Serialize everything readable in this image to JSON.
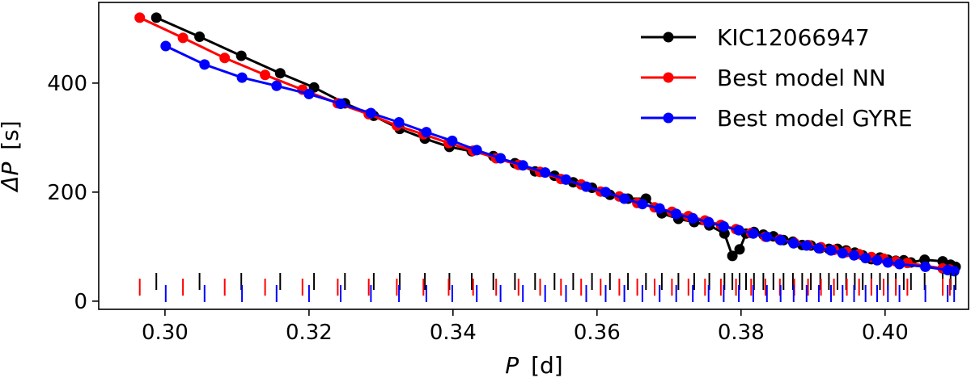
{
  "chart_data": {
    "type": "line",
    "xlabel_symbol": "P",
    "xlabel_unit": "[d]",
    "ylabel_symbol": "ΔP",
    "ylabel_unit": "[s]",
    "xlim": [
      0.2908,
      0.4116
    ],
    "ylim": [
      -15,
      548
    ],
    "xticks": [
      0.3,
      0.32,
      0.34,
      0.36,
      0.38,
      0.4
    ],
    "xtick_labels": [
      "0.30",
      "0.32",
      "0.34",
      "0.36",
      "0.38",
      "0.40"
    ],
    "yticks": [
      0,
      200,
      400
    ],
    "ytick_labels": [
      "0",
      "200",
      "400"
    ],
    "legend_position": "top-right",
    "series": [
      {
        "name": "KIC12066947",
        "color": "#000000",
        "x": [
          0.2988,
          0.3048,
          0.3106,
          0.316,
          0.3207,
          0.325,
          0.329,
          0.3326,
          0.3361,
          0.3395,
          0.3426,
          0.3456,
          0.3486,
          0.3514,
          0.3541,
          0.3567,
          0.3593,
          0.3618,
          0.3643,
          0.3668,
          0.369,
          0.3713,
          0.3735,
          0.3756,
          0.3777,
          0.3788,
          0.3798,
          0.3807,
          0.3818,
          0.3831,
          0.3845,
          0.3859,
          0.3872,
          0.3885,
          0.3897,
          0.391,
          0.3922,
          0.3934,
          0.3946,
          0.3958,
          0.3969,
          0.3981,
          0.3993,
          0.4004,
          0.4015,
          0.4026,
          0.4036,
          0.4055,
          0.408,
          0.4091,
          0.4098
        ],
        "y": [
          520,
          485,
          450,
          418,
          392,
          363,
          340,
          316,
          298,
          283,
          275,
          266,
          253,
          238,
          230,
          218,
          208,
          195,
          188,
          188,
          161,
          151,
          145,
          139,
          124,
          83,
          95,
          124,
          127,
          122,
          119,
          112,
          109,
          103,
          102,
          97,
          96,
          96,
          93,
          89,
          84,
          77,
          80,
          76,
          74,
          75,
          71,
          76,
          73,
          67,
          63
        ],
        "rug": [
          0.2988,
          0.3048,
          0.3106,
          0.316,
          0.3207,
          0.325,
          0.329,
          0.3326,
          0.3361,
          0.3395,
          0.3426,
          0.3456,
          0.3486,
          0.3514,
          0.3541,
          0.3567,
          0.3593,
          0.3618,
          0.3643,
          0.3668,
          0.369,
          0.3713,
          0.3735,
          0.3756,
          0.3777,
          0.3788,
          0.3798,
          0.3807,
          0.3818,
          0.3831,
          0.3845,
          0.3859,
          0.3872,
          0.3885,
          0.3897,
          0.391,
          0.3922,
          0.3934,
          0.3946,
          0.3958,
          0.3969,
          0.3981,
          0.3993,
          0.4004,
          0.4015,
          0.4026,
          0.4036,
          0.4055,
          0.408,
          0.4091,
          0.4098
        ]
      },
      {
        "name": "Best model NN",
        "color": "#ff0000",
        "x": [
          0.2965,
          0.3025,
          0.3083,
          0.3139,
          0.3191,
          0.324,
          0.3283,
          0.3322,
          0.3359,
          0.3394,
          0.3428,
          0.346,
          0.3491,
          0.3521,
          0.355,
          0.3578,
          0.3605,
          0.3631,
          0.3656,
          0.368,
          0.3704,
          0.3727,
          0.375,
          0.3772,
          0.3793,
          0.3814,
          0.3834,
          0.3854,
          0.3874,
          0.3893,
          0.3911,
          0.3929,
          0.3947,
          0.3964,
          0.3981,
          0.3998,
          0.4015,
          0.4031,
          0.408,
          0.409
        ],
        "y": [
          520,
          483,
          446,
          415,
          388,
          363,
          343,
          322,
          306,
          290,
          276,
          262,
          250,
          237,
          224,
          214,
          201,
          192,
          180,
          172,
          164,
          156,
          148,
          140,
          132,
          125,
          118,
          113,
          107,
          103,
          99,
          94,
          90,
          86,
          81,
          78,
          73,
          70,
          60,
          58
        ],
        "rug": [
          0.2965,
          0.3025,
          0.3083,
          0.3139,
          0.3191,
          0.324,
          0.3283,
          0.3322,
          0.3359,
          0.3394,
          0.3428,
          0.346,
          0.3491,
          0.3521,
          0.355,
          0.3578,
          0.3605,
          0.3631,
          0.3656,
          0.368,
          0.3704,
          0.3727,
          0.375,
          0.3772,
          0.3793,
          0.3814,
          0.3834,
          0.3854,
          0.3874,
          0.3893,
          0.3911,
          0.3929,
          0.3947,
          0.3964,
          0.3981,
          0.3998,
          0.4015,
          0.4031,
          0.408,
          0.409
        ]
      },
      {
        "name": "Best model GYRE",
        "color": "#0000ff",
        "x": [
          0.3001,
          0.3055,
          0.3107,
          0.3155,
          0.32,
          0.3244,
          0.3286,
          0.3325,
          0.3363,
          0.3399,
          0.3433,
          0.3466,
          0.3497,
          0.3528,
          0.3557,
          0.3585,
          0.3612,
          0.3638,
          0.3663,
          0.3687,
          0.371,
          0.3733,
          0.3755,
          0.3776,
          0.3797,
          0.3817,
          0.3836,
          0.3855,
          0.3873,
          0.3891,
          0.3908,
          0.3925,
          0.3941,
          0.3957,
          0.3973,
          0.3989,
          0.4004,
          0.402,
          0.4056,
          0.4087,
          0.4096
        ],
        "y": [
          468,
          434,
          410,
          395,
          380,
          362,
          345,
          328,
          310,
          294,
          277,
          262,
          249,
          236,
          223,
          210,
          200,
          188,
          178,
          170,
          160,
          152,
          145,
          137,
          130,
          124,
          118,
          112,
          106,
          102,
          97,
          93,
          88,
          84,
          79,
          75,
          71,
          68,
          63,
          57,
          55
        ],
        "rug": [
          0.3001,
          0.3055,
          0.3107,
          0.3155,
          0.32,
          0.3244,
          0.3286,
          0.3325,
          0.3363,
          0.3399,
          0.3433,
          0.3466,
          0.3497,
          0.3528,
          0.3557,
          0.3585,
          0.3612,
          0.3638,
          0.3663,
          0.3687,
          0.371,
          0.3733,
          0.3755,
          0.3776,
          0.3797,
          0.3817,
          0.3836,
          0.3855,
          0.3873,
          0.3891,
          0.3908,
          0.3925,
          0.3941,
          0.3957,
          0.3973,
          0.3989,
          0.4004,
          0.402,
          0.4056,
          0.4087,
          0.4096
        ]
      }
    ]
  }
}
